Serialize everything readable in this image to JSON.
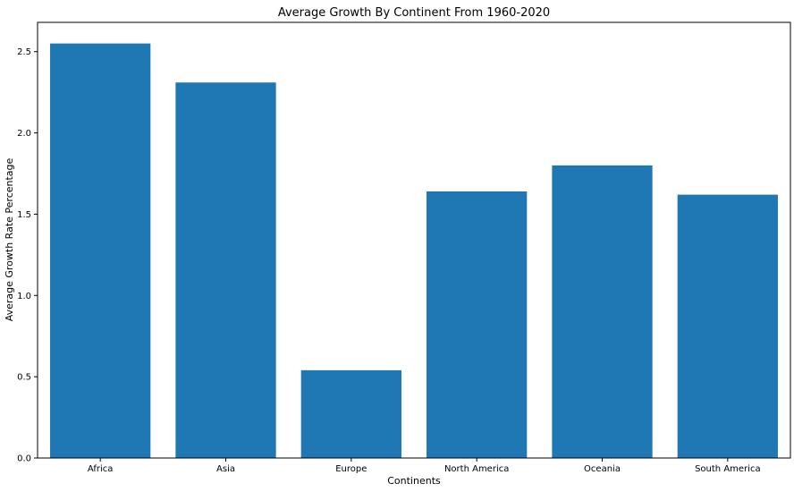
{
  "chart_data": {
    "type": "bar",
    "title": "Average Growth By Continent From 1960-2020",
    "xlabel": "Continents",
    "ylabel": "Average Growth Rate Percentage",
    "categories": [
      "Africa",
      "Asia",
      "Europe",
      "North America",
      "Oceania",
      "South America"
    ],
    "values": [
      2.55,
      2.31,
      0.54,
      1.64,
      1.8,
      1.62
    ],
    "ylim": [
      0,
      2.68
    ],
    "yticks": [
      0.0,
      0.5,
      1.0,
      1.5,
      2.0,
      2.5
    ],
    "ytick_labels": [
      "0.0",
      "0.5",
      "1.0",
      "1.5",
      "2.0",
      "2.5"
    ],
    "bar_color": "#1f77b4",
    "grid": false
  }
}
